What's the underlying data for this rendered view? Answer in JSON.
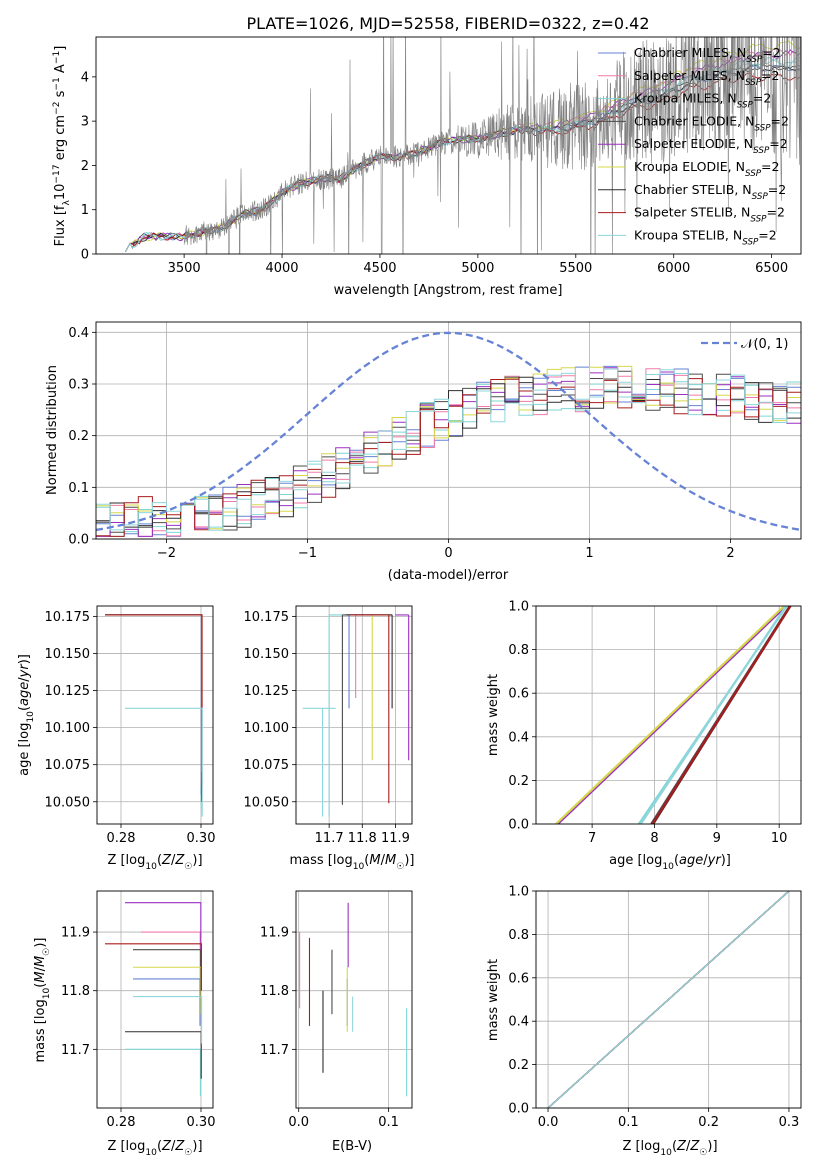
{
  "title": "PLATE=1026, MJD=52558, FIBERID=0322, z=0.42",
  "colors": [
    "#6683d5",
    "#f07ba8",
    "#7fd6d6",
    "#4c4c4c",
    "#9a30c0",
    "#d5d84a",
    "#2e2e2e",
    "#a91c1c",
    "#8fd6dc"
  ],
  "chart_data": [
    {
      "id": "spectrum",
      "type": "line",
      "xlabel": "wavelength [Angstrom, rest frame]",
      "ylabel": "Flux [f_λ 10^-17 erg cm^-2 s^-1 A^-1]",
      "xlim": [
        3050,
        6650
      ],
      "ylim": [
        0,
        4.9
      ],
      "xticks": [
        "3500",
        "4000",
        "4500",
        "5000",
        "5500",
        "6000",
        "6500"
      ],
      "yticks": [
        "0",
        "1",
        "2",
        "3",
        "4"
      ],
      "grid": false,
      "legend_position": "top-right",
      "data_trend": [
        [
          3200,
          0.1
        ],
        [
          3300,
          0.4
        ],
        [
          3400,
          0.4
        ],
        [
          3500,
          0.4
        ],
        [
          3600,
          0.5
        ],
        [
          3700,
          0.6
        ],
        [
          3800,
          0.9
        ],
        [
          3900,
          1.0
        ],
        [
          4000,
          1.4
        ],
        [
          4100,
          1.6
        ],
        [
          4200,
          1.7
        ],
        [
          4300,
          1.7
        ],
        [
          4400,
          2.0
        ],
        [
          4500,
          2.2
        ],
        [
          4600,
          2.2
        ],
        [
          4700,
          2.3
        ],
        [
          4800,
          2.5
        ],
        [
          4900,
          2.6
        ],
        [
          5000,
          2.6
        ],
        [
          5100,
          2.7
        ],
        [
          5200,
          2.8
        ],
        [
          5300,
          2.8
        ],
        [
          5400,
          2.8
        ],
        [
          5500,
          2.9
        ],
        [
          5600,
          3.0
        ],
        [
          5700,
          3.2
        ],
        [
          5800,
          3.4
        ],
        [
          5900,
          3.5
        ],
        [
          6000,
          3.7
        ],
        [
          6100,
          3.9
        ],
        [
          6200,
          4.0
        ],
        [
          6300,
          4.1
        ],
        [
          6400,
          4.2
        ],
        [
          6500,
          4.2
        ]
      ],
      "series": [
        {
          "name": "Chabrier MILES, N_SSP=2"
        },
        {
          "name": "Salpeter MILES, N_SSP=2"
        },
        {
          "name": "Kroupa MILES, N_SSP=2"
        },
        {
          "name": "Chabrier ELODIE, N_SSP=2"
        },
        {
          "name": "Salpeter ELODIE, N_SSP=2"
        },
        {
          "name": "Kroupa ELODIE, N_SSP=2"
        },
        {
          "name": "Chabrier STELIB, N_SSP=2"
        },
        {
          "name": "Salpeter STELIB, N_SSP=2"
        },
        {
          "name": "Kroupa STELIB, N_SSP=2"
        }
      ]
    },
    {
      "id": "residuals",
      "type": "line",
      "xlabel": "(data-model)/error",
      "ylabel": "Normed distribution",
      "xlim": [
        -2.5,
        2.5
      ],
      "ylim": [
        0,
        0.42
      ],
      "xticks": [
        "−2",
        "−1",
        "0",
        "1",
        "2"
      ],
      "yticks": [
        "0.0",
        "0.1",
        "0.2",
        "0.3",
        "0.4"
      ],
      "grid": true,
      "legend_position": "top-right",
      "gaussian_label": "𝒩(0, 1)",
      "gaussian": {
        "mean": 0,
        "sigma": 1
      }
    },
    {
      "id": "age-vs-Z",
      "type": "line",
      "xlabel": "Z [log10(Z/Z☉)]",
      "ylabel": "age  [log10(age/yr)]",
      "xlim": [
        0.274,
        0.303
      ],
      "ylim": [
        10.035,
        10.182
      ],
      "xticks": [
        "0.28",
        "0.30"
      ],
      "yticks": [
        "10.050",
        "10.075",
        "10.100",
        "10.125",
        "10.150",
        "10.175"
      ],
      "grid": true,
      "series": [
        {
          "x_from": 0.276,
          "x_to": 0.3,
          "y": 10.176,
          "vline_bottom": 10.055
        },
        {
          "x_from": 0.276,
          "x_to": 0.3,
          "y": 10.176,
          "vline_bottom": 10.06
        },
        {
          "x_from": 0.276,
          "x_to": 0.3,
          "y": 10.176,
          "vline_bottom": 10.045
        },
        {
          "x_from": 0.276,
          "x_to": 0.3,
          "y": 10.176,
          "vline_bottom": 10.05
        },
        {
          "x_from": 0.276,
          "x_to": 0.3,
          "y": 10.176,
          "vline_bottom": 10.065
        },
        {
          "x_from": 0.276,
          "x_to": 0.3,
          "y": 10.176,
          "vline_bottom": 10.07
        },
        {
          "x_from": 0.276,
          "x_to": 0.3,
          "y": 10.176,
          "vline_bottom": 10.052
        },
        {
          "x_from": 0.276,
          "x_to": 0.3,
          "y": 10.176,
          "vline_bottom": 10.058
        },
        {
          "x_from": 0.281,
          "x_to": 0.3,
          "y": 10.113,
          "vline_bottom": 10.04
        }
      ]
    },
    {
      "id": "age-vs-mass",
      "type": "line",
      "xlabel": "mass [log10(M/M☉)]",
      "xlim": [
        11.6,
        11.95
      ],
      "ylim": [
        10.035,
        10.182
      ],
      "xticks": [
        "11.7",
        "11.8",
        "11.9"
      ],
      "yticks": [
        "10.050",
        "10.075",
        "10.100",
        "10.125",
        "10.150",
        "10.175"
      ],
      "grid": true,
      "series": [
        {
          "x_from": 11.76,
          "x_to": 11.85,
          "y": 10.176,
          "vline_x": 11.76,
          "vline_bottom": 10.113
        },
        {
          "x_from": 11.78,
          "x_to": 11.88,
          "y": 10.176,
          "vline_x": 11.78,
          "vline_bottom": 10.12
        },
        {
          "x_from": 11.7,
          "x_to": 11.88,
          "y": 10.176,
          "vline_x": 11.7,
          "vline_bottom": 10.04
        },
        {
          "x_from": 11.74,
          "x_to": 11.89,
          "y": 10.176,
          "vline_x": 11.74,
          "vline_bottom": 10.048
        },
        {
          "x_from": 11.9,
          "x_to": 11.94,
          "y": 10.176,
          "vline_x": 11.94,
          "vline_bottom": 10.078
        },
        {
          "x_from": 11.83,
          "x_to": 11.88,
          "y": 10.176,
          "vline_x": 11.83,
          "vline_bottom": 10.078
        },
        {
          "x_from": 11.75,
          "x_to": 11.89,
          "y": 10.176,
          "vline_x": 11.89,
          "vline_bottom": 10.113
        },
        {
          "x_from": 11.76,
          "x_to": 11.88,
          "y": 10.176,
          "vline_x": 11.88,
          "vline_bottom": 10.049
        },
        {
          "x_from": 11.62,
          "x_to": 11.72,
          "y": 10.113,
          "vline_x": 11.68,
          "vline_bottom": 10.04
        }
      ]
    },
    {
      "id": "massweight-vs-age",
      "type": "line",
      "xlabel": "age  [log10(age/yr)]",
      "ylabel": "mass weight",
      "xlim": [
        6.1,
        10.35
      ],
      "ylim": [
        0,
        1
      ],
      "xticks": [
        "7",
        "8",
        "9",
        "10"
      ],
      "yticks": [
        "0.0",
        "0.2",
        "0.4",
        "0.6",
        "0.8",
        "1.0"
      ],
      "grid": true,
      "series": [
        {
          "x0": 7.95,
          "x1": 10.17
        },
        {
          "x0": 7.95,
          "x1": 10.17
        },
        {
          "x0": 7.75,
          "x1": 10.12
        },
        {
          "x0": 7.95,
          "x1": 10.17
        },
        {
          "x0": 6.45,
          "x1": 10.11
        },
        {
          "x0": 6.42,
          "x1": 10.08
        },
        {
          "x0": 7.98,
          "x1": 10.18
        },
        {
          "x0": 7.97,
          "x1": 10.18
        },
        {
          "x0": 7.78,
          "x1": 10.11
        }
      ]
    },
    {
      "id": "mass-vs-Z",
      "type": "line",
      "xlabel": "Z [log10(Z/Z☉)]",
      "ylabel": "mass [log10(M/M☉)]",
      "xlim": [
        0.274,
        0.303
      ],
      "ylim": [
        11.6,
        11.97
      ],
      "xticks": [
        "0.28",
        "0.30"
      ],
      "yticks": [
        "11.7",
        "11.8",
        "11.9"
      ],
      "grid": true,
      "series": [
        {
          "x_from": 0.283,
          "x_to": 0.3,
          "y": 11.82
        },
        {
          "x_from": 0.285,
          "x_to": 0.3,
          "y": 11.9
        },
        {
          "x_from": 0.281,
          "x_to": 0.3,
          "y": 11.7
        },
        {
          "x_from": 0.283,
          "x_to": 0.3,
          "y": 11.87
        },
        {
          "x_from": 0.281,
          "x_to": 0.3,
          "y": 11.95
        },
        {
          "x_from": 0.283,
          "x_to": 0.3,
          "y": 11.84
        },
        {
          "x_from": 0.281,
          "x_to": 0.3,
          "y": 11.73
        },
        {
          "x_from": 0.276,
          "x_to": 0.3,
          "y": 11.88
        },
        {
          "x_from": 0.283,
          "x_to": 0.3,
          "y": 11.79
        }
      ]
    },
    {
      "id": "mass-vs-ebv",
      "type": "line",
      "xlabel": "E(B-V)",
      "xlim": [
        -0.003,
        0.126
      ],
      "ylim": [
        11.6,
        11.97
      ],
      "xticks": [
        "0.0",
        "0.1"
      ],
      "yticks": [
        "11.7",
        "11.8",
        "11.9"
      ],
      "grid": true,
      "series": [
        {
          "x": 0.054,
          "y0": 11.74,
          "y1": 11.82
        },
        {
          "x": 0.001,
          "y0": 11.77,
          "y1": 11.9
        },
        {
          "x": 0.12,
          "y0": 11.62,
          "y1": 11.77
        },
        {
          "x": 0.037,
          "y0": 11.76,
          "y1": 11.87
        },
        {
          "x": 0.055,
          "y0": 11.84,
          "y1": 11.95
        },
        {
          "x": 0.054,
          "y0": 11.73,
          "y1": 11.84
        },
        {
          "x": 0.027,
          "y0": 11.66,
          "y1": 11.8
        },
        {
          "x": 0.012,
          "y0": 11.74,
          "y1": 11.89
        },
        {
          "x": 0.06,
          "y0": 11.73,
          "y1": 11.79
        }
      ]
    },
    {
      "id": "massweight-vs-Z",
      "type": "line",
      "xlabel": "Z [log10(Z/Z☉)]",
      "ylabel": "mass weight",
      "xlim": [
        -0.015,
        0.315
      ],
      "ylim": [
        0,
        1
      ],
      "xticks": [
        "0.0",
        "0.1",
        "0.2",
        "0.3"
      ],
      "yticks": [
        "0.0",
        "0.2",
        "0.4",
        "0.6",
        "0.8",
        "1.0"
      ],
      "grid": true,
      "series_x_range": [
        0,
        0.3
      ]
    }
  ]
}
